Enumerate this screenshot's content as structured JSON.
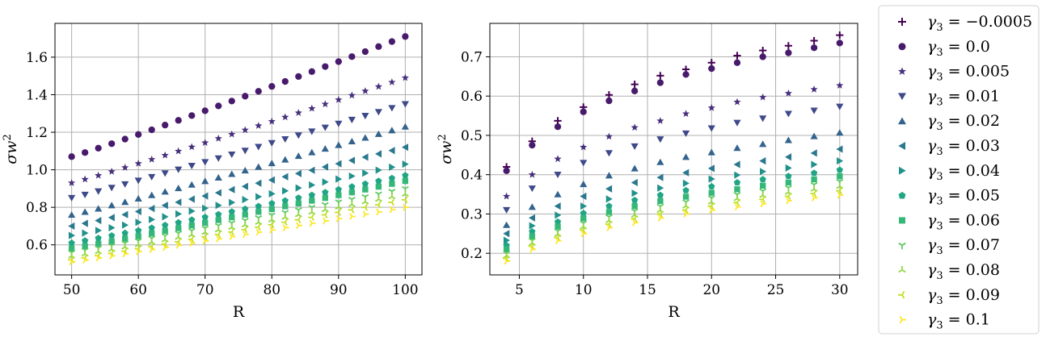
{
  "chart_data": [
    {
      "type": "scatter",
      "xlabel": "R",
      "ylabel_var": "σw",
      "ylabel_exp": "2",
      "xlim": [
        47.5,
        102.5
      ],
      "ylim": [
        0.44,
        1.78
      ],
      "xticks": [
        50,
        60,
        70,
        80,
        90,
        100
      ],
      "yticks": [
        0.6,
        0.8,
        1.0,
        1.2,
        1.4,
        1.6
      ],
      "ytick_labels": [
        "0.6",
        "0.8",
        "1.0",
        "1.2",
        "1.4",
        "1.6"
      ],
      "grid": true,
      "x": [
        50,
        52,
        54,
        56,
        58,
        60,
        62,
        64,
        66,
        68,
        70,
        72,
        74,
        76,
        78,
        80,
        82,
        84,
        86,
        88,
        90,
        92,
        94,
        96,
        98,
        100
      ],
      "series": [
        {
          "name": "γ3 = 0.0",
          "y0": 1.07,
          "y1": 1.71
        },
        {
          "name": "γ3 = 0.005",
          "y0": 0.93,
          "y1": 1.49
        },
        {
          "name": "γ3 = 0.01",
          "y0": 0.85,
          "y1": 1.35
        },
        {
          "name": "γ3 = 0.02",
          "y0": 0.76,
          "y1": 1.23
        },
        {
          "name": "γ3 = 0.03",
          "y0": 0.7,
          "y1": 1.12
        },
        {
          "name": "γ3 = 0.04",
          "y0": 0.65,
          "y1": 1.03
        },
        {
          "name": "γ3 = 0.05",
          "y0": 0.61,
          "y1": 0.97
        },
        {
          "name": "γ3 = 0.06",
          "y0": 0.58,
          "y1": 0.94
        },
        {
          "name": "γ3 = 0.07",
          "y0": 0.56,
          "y1": 0.9
        },
        {
          "name": "γ3 = 0.08",
          "y0": 0.54,
          "y1": 0.87
        },
        {
          "name": "γ3 = 0.09",
          "y0": 0.52,
          "y1": 0.84
        },
        {
          "name": "γ3 = 0.1",
          "y0": 0.51,
          "y1": 0.8
        }
      ]
    },
    {
      "type": "scatter",
      "xlabel": "R",
      "ylabel_var": "σw",
      "ylabel_exp": "2",
      "xlim": [
        2.7,
        31.4
      ],
      "ylim": [
        0.145,
        0.785
      ],
      "xticks": [
        5,
        10,
        15,
        20,
        25,
        30
      ],
      "yticks": [
        0.2,
        0.3,
        0.4,
        0.5,
        0.6,
        0.7
      ],
      "ytick_labels": [
        "0.2",
        "0.3",
        "0.4",
        "0.5",
        "0.6",
        "0.7"
      ],
      "grid": true,
      "x": [
        4,
        6,
        8,
        10,
        12,
        14,
        16,
        18,
        20,
        22,
        24,
        26,
        28,
        30
      ],
      "series": [
        {
          "name": "γ3 = −0.0005",
          "values": [
            0.42,
            0.485,
            0.537,
            0.572,
            0.603,
            0.63,
            0.652,
            0.668,
            0.685,
            0.703,
            0.716,
            0.728,
            0.741,
            0.755
          ]
        },
        {
          "name": "γ3 = 0.0",
          "values": [
            0.41,
            0.475,
            0.522,
            0.56,
            0.588,
            0.613,
            0.634,
            0.655,
            0.67,
            0.685,
            0.7,
            0.71,
            0.723,
            0.735
          ]
        },
        {
          "name": "γ3 = 0.005",
          "values": [
            0.345,
            0.4,
            0.44,
            0.47,
            0.497,
            0.52,
            0.537,
            0.555,
            0.57,
            0.585,
            0.597,
            0.607,
            0.617,
            0.627
          ]
        },
        {
          "name": "γ3 = 0.01",
          "values": [
            0.31,
            0.365,
            0.4,
            0.43,
            0.455,
            0.472,
            0.49,
            0.505,
            0.518,
            0.532,
            0.543,
            0.555,
            0.563,
            0.573
          ]
        },
        {
          "name": "γ3 = 0.02",
          "values": [
            0.272,
            0.318,
            0.35,
            0.376,
            0.398,
            0.416,
            0.432,
            0.445,
            0.457,
            0.468,
            0.478,
            0.488,
            0.498,
            0.507
          ]
        },
        {
          "name": "γ3 = 0.03",
          "values": [
            0.25,
            0.29,
            0.32,
            0.345,
            0.364,
            0.38,
            0.393,
            0.405,
            0.416,
            0.426,
            0.435,
            0.445,
            0.455,
            0.465
          ]
        },
        {
          "name": "γ3 = 0.04",
          "values": [
            0.233,
            0.27,
            0.297,
            0.32,
            0.338,
            0.353,
            0.366,
            0.378,
            0.389,
            0.399,
            0.408,
            0.417,
            0.426,
            0.435
          ]
        },
        {
          "name": "γ3 = 0.05",
          "values": [
            0.22,
            0.255,
            0.28,
            0.302,
            0.32,
            0.335,
            0.348,
            0.36,
            0.37,
            0.38,
            0.388,
            0.396,
            0.404,
            0.412
          ]
        },
        {
          "name": "γ3 = 0.06",
          "values": [
            0.21,
            0.243,
            0.268,
            0.289,
            0.305,
            0.32,
            0.333,
            0.344,
            0.354,
            0.363,
            0.372,
            0.38,
            0.388,
            0.396
          ]
        },
        {
          "name": "γ3 = 0.07",
          "values": [
            0.2,
            0.233,
            0.257,
            0.277,
            0.293,
            0.308,
            0.32,
            0.331,
            0.341,
            0.35,
            0.359,
            0.367,
            0.375,
            0.383
          ]
        },
        {
          "name": "γ3 = 0.08",
          "values": [
            0.193,
            0.225,
            0.248,
            0.267,
            0.283,
            0.297,
            0.309,
            0.32,
            0.33,
            0.339,
            0.347,
            0.355,
            0.363,
            0.37
          ]
        },
        {
          "name": "γ3 = 0.09",
          "values": [
            0.187,
            0.218,
            0.24,
            0.259,
            0.274,
            0.288,
            0.3,
            0.31,
            0.32,
            0.329,
            0.337,
            0.345,
            0.352,
            0.359
          ]
        },
        {
          "name": "γ3 = 0.1",
          "values": [
            0.18,
            0.21,
            0.232,
            0.25,
            0.265,
            0.278,
            0.29,
            0.3,
            0.31,
            0.318,
            0.326,
            0.334,
            0.341,
            0.348
          ]
        }
      ]
    }
  ],
  "legend": {
    "placement": "right",
    "entries": [
      {
        "value": "= −0.0005",
        "marker": "plus",
        "color": "#440154"
      },
      {
        "value": "= 0.0",
        "marker": "circle",
        "color": "#481a6c"
      },
      {
        "value": "= 0.005",
        "marker": "star",
        "color": "#472f7d"
      },
      {
        "value": "= 0.01",
        "marker": "tri_down",
        "color": "#3e4989"
      },
      {
        "value": "= 0.02",
        "marker": "tri_up",
        "color": "#33638d"
      },
      {
        "value": "= 0.03",
        "marker": "tri_left",
        "color": "#29788e"
      },
      {
        "value": "= 0.04",
        "marker": "tri_right",
        "color": "#21918c"
      },
      {
        "value": "= 0.05",
        "marker": "pentagon",
        "color": "#21a685"
      },
      {
        "value": "= 0.06",
        "marker": "square",
        "color": "#35b779"
      },
      {
        "value": "= 0.07",
        "marker": "y_down",
        "color": "#5ec962"
      },
      {
        "value": "= 0.08",
        "marker": "y_up",
        "color": "#90d743"
      },
      {
        "value": "= 0.09",
        "marker": "y_left",
        "color": "#c2df23"
      },
      {
        "value": "= 0.1",
        "marker": "y_right",
        "color": "#fde725"
      }
    ],
    "symbol": "γ",
    "subscript": "3"
  }
}
